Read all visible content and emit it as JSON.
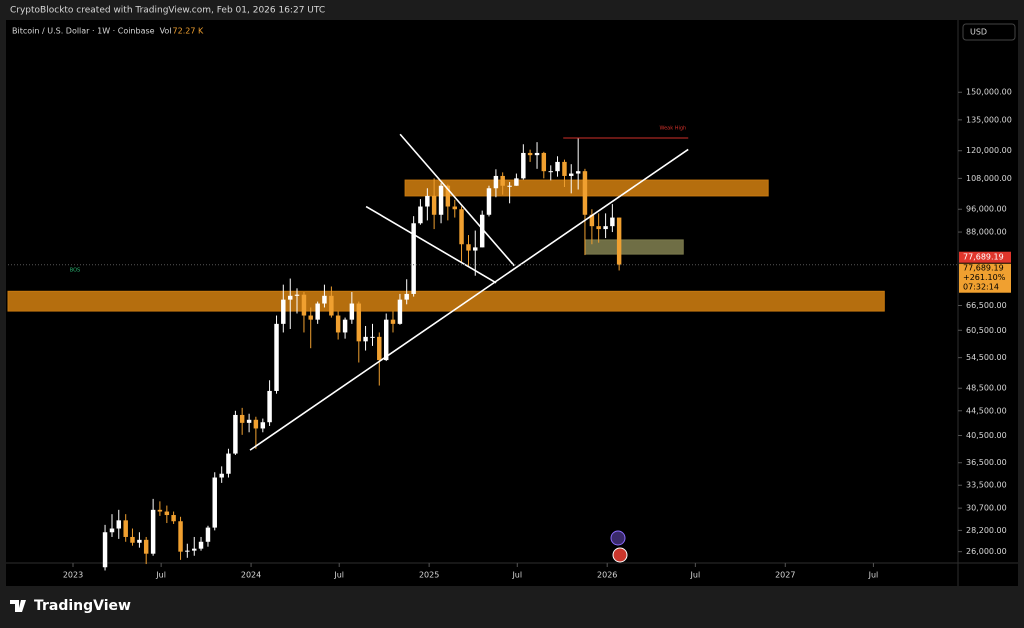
{
  "chart_data": {
    "type": "candlestick",
    "header": "CryptoBlockto created with TradingView.com, Feb 01, 2026 16:27 UTC",
    "title": "Bitcoin / U.S. Dollar · 1W · Coinbase",
    "vol_label": "Vol",
    "vol_value": "72.27 K",
    "currency": "USD",
    "brand": "TradingView",
    "log_scale": true,
    "up_color": "#ffffff",
    "down_color": "#f0a030",
    "xlim": [
      2022.635,
      2027.97
    ],
    "ylim": [
      24900,
      197600
    ],
    "xticks": [
      {
        "value": 2023,
        "label": "2023"
      },
      {
        "value": 2023.495,
        "label": "Jul"
      },
      {
        "value": 2024,
        "label": "2024"
      },
      {
        "value": 2024.495,
        "label": "Jul"
      },
      {
        "value": 2025,
        "label": "2025"
      },
      {
        "value": 2025.495,
        "label": "Jul"
      },
      {
        "value": 2026,
        "label": "2026"
      },
      {
        "value": 2026.495,
        "label": "Jul"
      },
      {
        "value": 2027,
        "label": "2027"
      },
      {
        "value": 2027.495,
        "label": "Jul"
      }
    ],
    "yticks": [
      {
        "value": 150000,
        "label": "150,000.00"
      },
      {
        "value": 135000,
        "label": "135,000.00"
      },
      {
        "value": 120000,
        "label": "120,000.00"
      },
      {
        "value": 108000,
        "label": "108,000.00"
      },
      {
        "value": 96000,
        "label": "96,000.00"
      },
      {
        "value": 88000,
        "label": "88,000.00"
      },
      {
        "value": 66500,
        "label": "66,500.00"
      },
      {
        "value": 60500,
        "label": "60,500.00"
      },
      {
        "value": 54500,
        "label": "54,500.00"
      },
      {
        "value": 48500,
        "label": "48,500.00"
      },
      {
        "value": 44500,
        "label": "44,500.00"
      },
      {
        "value": 40500,
        "label": "40,500.00"
      },
      {
        "value": 36500,
        "label": "36,500.00"
      },
      {
        "value": 33500,
        "label": "33,500.00"
      },
      {
        "value": 30700,
        "label": "30,700.00"
      },
      {
        "value": 28200,
        "label": "28,200.00"
      },
      {
        "value": 26000,
        "label": "26,000.00"
      }
    ],
    "x": [
      2023.18,
      2023.219,
      2023.257,
      2023.296,
      2023.334,
      2023.373,
      2023.411,
      2023.45,
      2023.488,
      2023.527,
      2023.565,
      2023.604,
      2023.642,
      2023.681,
      2023.719,
      2023.758,
      2023.796,
      2023.835,
      2023.873,
      2023.912,
      2023.95,
      2023.989,
      2024.027,
      2024.066,
      2024.104,
      2024.143,
      2024.181,
      2024.22,
      2024.258,
      2024.297,
      2024.335,
      2024.374,
      2024.412,
      2024.451,
      2024.489,
      2024.528,
      2024.566,
      2024.605,
      2024.643,
      2024.682,
      2024.72,
      2024.759,
      2024.797,
      2024.836,
      2024.874,
      2024.913,
      2024.951,
      2024.99,
      2025.028,
      2025.067,
      2025.105,
      2025.144,
      2025.182,
      2025.221,
      2025.259,
      2025.298,
      2025.336,
      2025.375,
      2025.413,
      2025.452,
      2025.49,
      2025.529,
      2025.567,
      2025.606,
      2025.644,
      2025.683,
      2025.721,
      2025.76,
      2025.798,
      2025.837,
      2025.875,
      2025.914,
      2025.952,
      2025.991,
      2026.029,
      2026.067
    ],
    "open": [
      24500,
      28000,
      28400,
      29300,
      27500,
      26900,
      27200,
      25800,
      30500,
      30300,
      29900,
      29200,
      26000,
      26100,
      26300,
      27000,
      28500,
      34500,
      35000,
      37800,
      43800,
      42500,
      43000,
      41600,
      42600,
      48000,
      62000,
      68000,
      69000,
      69300,
      64000,
      63000,
      67000,
      69000,
      64000,
      60000,
      63000,
      67000,
      58000,
      59000,
      59000,
      54000,
      63000,
      62000,
      68000,
      69500,
      91000,
      97000,
      101000,
      94000,
      105000,
      97000,
      96000,
      84000,
      82000,
      83000,
      94000,
      104000,
      109000,
      105000,
      105000,
      108000,
      119000,
      118000,
      119000,
      111000,
      111000,
      115000,
      109000,
      110000,
      111000,
      94000,
      90000,
      89000,
      90000,
      93000
    ],
    "high": [
      28800,
      30000,
      30500,
      30000,
      28400,
      28000,
      27500,
      31800,
      31500,
      31000,
      30300,
      29700,
      26800,
      27500,
      27500,
      28700,
      35200,
      36000,
      38500,
      44500,
      45000,
      44000,
      43500,
      43200,
      50000,
      64000,
      72000,
      73700,
      71000,
      70000,
      66000,
      67500,
      72000,
      71500,
      65000,
      63500,
      70000,
      67500,
      61500,
      62000,
      60000,
      64500,
      65000,
      69500,
      73500,
      93500,
      99800,
      104000,
      108000,
      106000,
      105500,
      99500,
      97000,
      87000,
      88500,
      95500,
      105000,
      111800,
      110500,
      106500,
      110000,
      123000,
      120500,
      124000,
      119500,
      113500,
      117500,
      116000,
      114000,
      126000,
      112000,
      96000,
      94500,
      94500,
      97900,
      93000
    ],
    "low": [
      24200,
      27500,
      27300,
      27000,
      26600,
      26400,
      24800,
      25600,
      29800,
      29000,
      28900,
      25200,
      25400,
      25600,
      26100,
      26500,
      28200,
      33800,
      34500,
      37600,
      40600,
      41000,
      38500,
      41000,
      42000,
      47500,
      60000,
      60800,
      64500,
      60000,
      56500,
      62000,
      66000,
      63500,
      58400,
      58600,
      62000,
      53500,
      56000,
      57000,
      49000,
      53800,
      60000,
      61800,
      66800,
      68800,
      90500,
      92000,
      89000,
      91000,
      92000,
      93000,
      78200,
      77000,
      74500,
      83000,
      93400,
      100500,
      101500,
      98200,
      105000,
      107500,
      115000,
      112000,
      108000,
      107200,
      108700,
      104500,
      102000,
      103500,
      80600,
      84000,
      84500,
      86000,
      88000,
      76000
    ],
    "close": [
      28000,
      28400,
      29300,
      27500,
      26900,
      27200,
      25800,
      30500,
      30300,
      29900,
      29200,
      26000,
      26100,
      26300,
      27000,
      28500,
      34500,
      35000,
      37800,
      43800,
      42500,
      43000,
      41600,
      42600,
      48000,
      62000,
      68000,
      69000,
      69300,
      64000,
      63000,
      67000,
      69000,
      64000,
      60000,
      63000,
      67000,
      58000,
      59000,
      59000,
      54000,
      63000,
      62000,
      68000,
      69500,
      91000,
      97000,
      101000,
      94000,
      105000,
      97000,
      96000,
      84000,
      82000,
      83000,
      94000,
      104000,
      109000,
      105000,
      105000,
      108000,
      119000,
      118000,
      119000,
      111000,
      111000,
      115000,
      109000,
      110000,
      111000,
      94000,
      90000,
      89000,
      90000,
      93000,
      77689.19
    ],
    "last_label": "77,689.19",
    "change_label": "+261.10%",
    "countdown": "07:32:14",
    "zones": [
      {
        "x": [
          2024.865,
          2026.904
        ],
        "y": [
          101000,
          107300
        ],
        "color": "#c97a10"
      },
      {
        "x": [
          2022.635,
          2027.556
        ],
        "y": [
          65100,
          70200
        ],
        "color": "#c97a10"
      },
      {
        "x": [
          2025.876,
          2026.427
        ],
        "y": [
          80900,
          85400
        ],
        "color": "#7b7a4c"
      }
    ],
    "trendlines": [
      {
        "x": [
          2023.994,
          2026.455
        ],
        "y": [
          38300,
          120600
        ],
        "color": "#ffffff"
      },
      {
        "x": [
          2024.837,
          2025.478
        ],
        "y": [
          127800,
          77400
        ],
        "color": "#ffffff"
      },
      {
        "x": [
          2024.646,
          2025.376
        ],
        "y": [
          97000,
          72500
        ],
        "color": "#ffffff"
      },
      {
        "x": [
          2025.753,
          2026.455
        ],
        "y": [
          126000,
          126000
        ],
        "color": "#d0302a",
        "label": "Weak High"
      }
    ],
    "bos_label": "BOS"
  }
}
